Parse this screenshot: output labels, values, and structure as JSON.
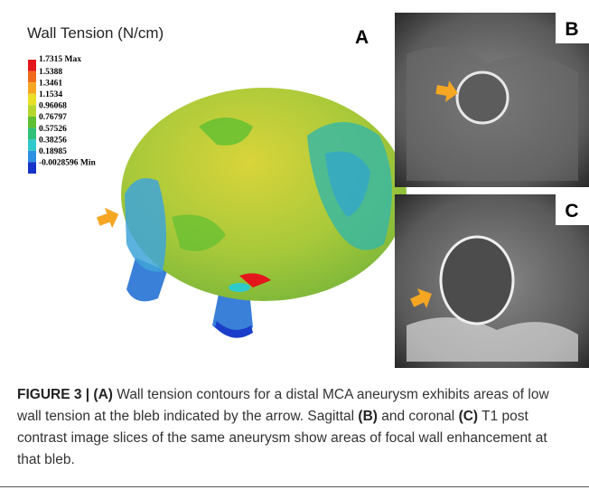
{
  "panel_a": {
    "title": "Wall Tension (N/cm)",
    "label": "A",
    "legend": [
      {
        "label": "1.7315 Max",
        "color": "#e3161b"
      },
      {
        "label": "1.5388",
        "color": "#f26a1b"
      },
      {
        "label": "1.3461",
        "color": "#f5a623"
      },
      {
        "label": "1.1534",
        "color": "#e8df26"
      },
      {
        "label": "0.96068",
        "color": "#b5d62e"
      },
      {
        "label": "0.76797",
        "color": "#5fbf32"
      },
      {
        "label": "0.57526",
        "color": "#2fc07a"
      },
      {
        "label": "0.38256",
        "color": "#2fc9c9"
      },
      {
        "label": "0.18985",
        "color": "#2e8fe0"
      },
      {
        "label": "-0.0028596 Min",
        "color": "#1532c9"
      }
    ]
  },
  "panel_b": {
    "label": "B"
  },
  "panel_c": {
    "label": "C"
  },
  "caption": [
    {
      "text": "FIGURE 3 | (A)",
      "bold": true
    },
    {
      "text": " Wall tension contours for a distal MCA aneurysm exhibits areas of low wall tension at the bleb indicated by the arrow. Sagittal ",
      "bold": false
    },
    {
      "text": "(B)",
      "bold": true
    },
    {
      "text": " and coronal ",
      "bold": false
    },
    {
      "text": "(C)",
      "bold": true
    },
    {
      "text": " T1 post contrast image slices of the same aneurysm show areas of focal wall enhancement at that bleb.",
      "bold": false
    }
  ]
}
